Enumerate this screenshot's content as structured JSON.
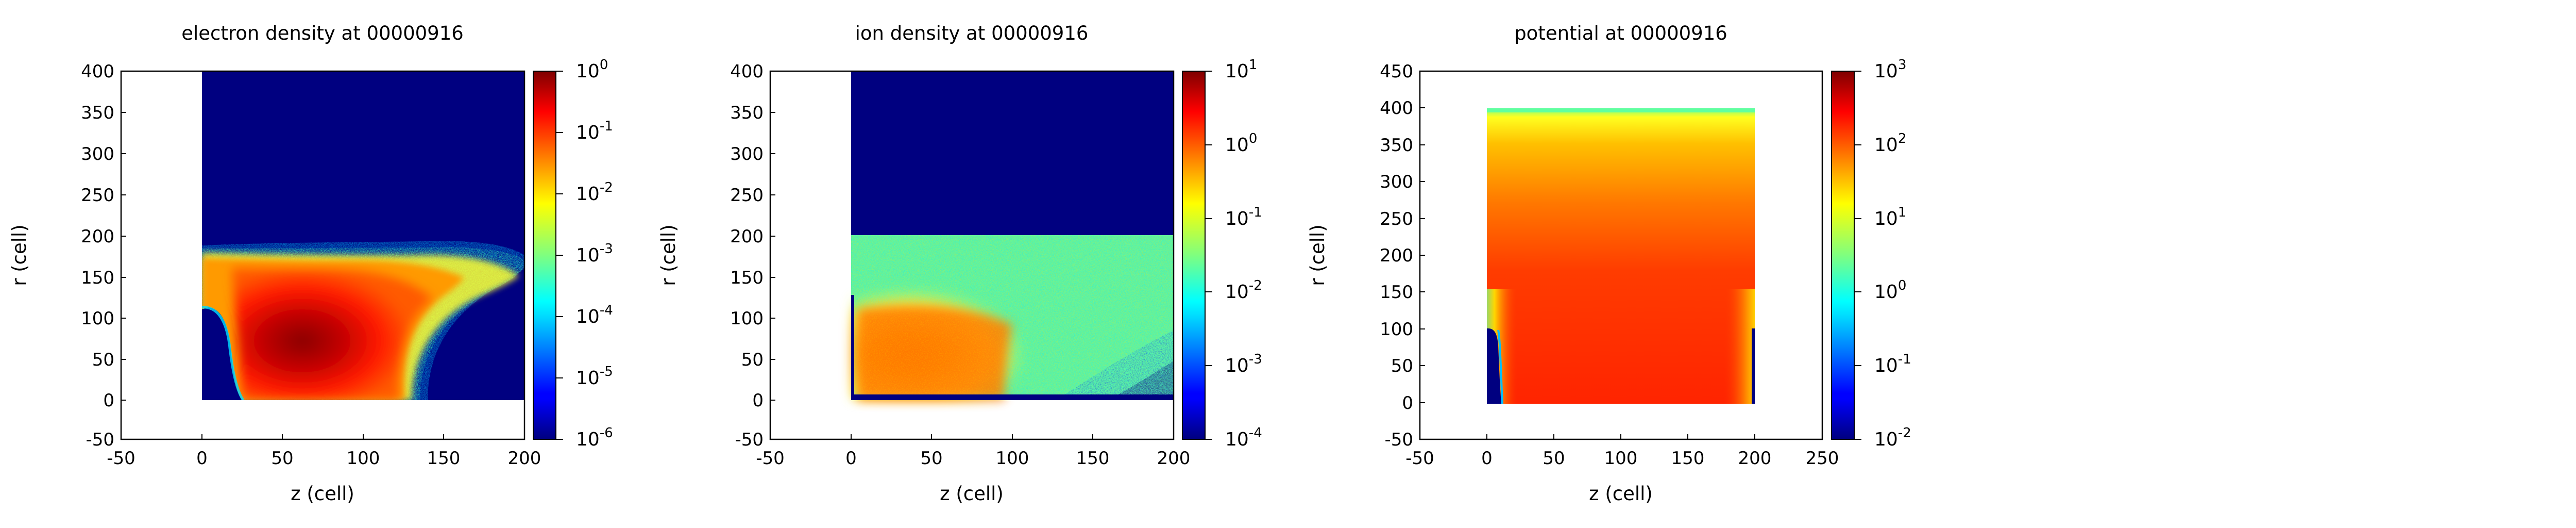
{
  "chart_data": [
    {
      "type": "heatmap",
      "title": "electron density at 00000916",
      "xlabel": "z (cell)",
      "ylabel": "r (cell)",
      "xlim": [
        -50,
        200
      ],
      "ylim": [
        -50,
        400
      ],
      "xticks": [
        -50,
        0,
        50,
        100,
        150,
        200
      ],
      "yticks": [
        -50,
        0,
        50,
        100,
        150,
        200,
        250,
        300,
        350,
        400
      ],
      "data_extent": {
        "z": [
          0,
          200
        ],
        "r": [
          0,
          400
        ]
      },
      "colorbar": {
        "scale": "log",
        "min": 1e-06,
        "max": 1,
        "tick_labels": [
          {
            "base": "10",
            "exp": "0"
          },
          {
            "base": "10",
            "exp": "-1"
          },
          {
            "base": "10",
            "exp": "-2"
          },
          {
            "base": "10",
            "exp": "-3"
          },
          {
            "base": "10",
            "exp": "-4"
          },
          {
            "base": "10",
            "exp": "-5"
          },
          {
            "base": "10",
            "exp": "-6"
          }
        ]
      },
      "description_values": {
        "background_density": 1e-06,
        "core_density_max": 1,
        "plasma_edge_r": 190,
        "core_r": 120
      }
    },
    {
      "type": "heatmap",
      "title": "ion density at 00000916",
      "xlabel": "z (cell)",
      "ylabel": "r (cell)",
      "xlim": [
        -50,
        200
      ],
      "ylim": [
        -50,
        400
      ],
      "xticks": [
        -50,
        0,
        50,
        100,
        150,
        200
      ],
      "yticks": [
        -50,
        0,
        50,
        100,
        150,
        200,
        250,
        300,
        350,
        400
      ],
      "data_extent": {
        "z": [
          0,
          200
        ],
        "r": [
          0,
          400
        ]
      },
      "colorbar": {
        "scale": "log",
        "min": 0.0001,
        "max": 10,
        "tick_labels": [
          {
            "base": "10",
            "exp": "1"
          },
          {
            "base": "10",
            "exp": "0"
          },
          {
            "base": "10",
            "exp": "-1"
          },
          {
            "base": "10",
            "exp": "-2"
          },
          {
            "base": "10",
            "exp": "-3"
          },
          {
            "base": "10",
            "exp": "-4"
          }
        ]
      },
      "description_values": {
        "background_density": 0.0001,
        "populated_r_max": 200,
        "core_density_max": 1
      }
    },
    {
      "type": "heatmap",
      "title": "potential at 00000916",
      "xlabel": "z (cell)",
      "ylabel": "r (cell)",
      "xlim": [
        -50,
        250
      ],
      "ylim": [
        -50,
        450
      ],
      "xticks": [
        -50,
        0,
        50,
        100,
        150,
        200,
        250
      ],
      "yticks": [
        -50,
        0,
        50,
        100,
        150,
        200,
        250,
        300,
        350,
        400,
        450
      ],
      "data_extent": {
        "z": [
          0,
          200
        ],
        "r": [
          0,
          400
        ]
      },
      "colorbar": {
        "scale": "log",
        "min": 0.01,
        "max": 1000,
        "tick_labels": [
          {
            "base": "10",
            "exp": "3"
          },
          {
            "base": "10",
            "exp": "2"
          },
          {
            "base": "10",
            "exp": "1"
          },
          {
            "base": "10",
            "exp": "0"
          },
          {
            "base": "10",
            "exp": "-1"
          },
          {
            "base": "10",
            "exp": "-2"
          }
        ]
      },
      "description_values": {
        "top_boundary_potential": 10,
        "bulk_potential": 250,
        "electrode_potential": 0.01,
        "electrode_r_max": 100
      }
    }
  ]
}
